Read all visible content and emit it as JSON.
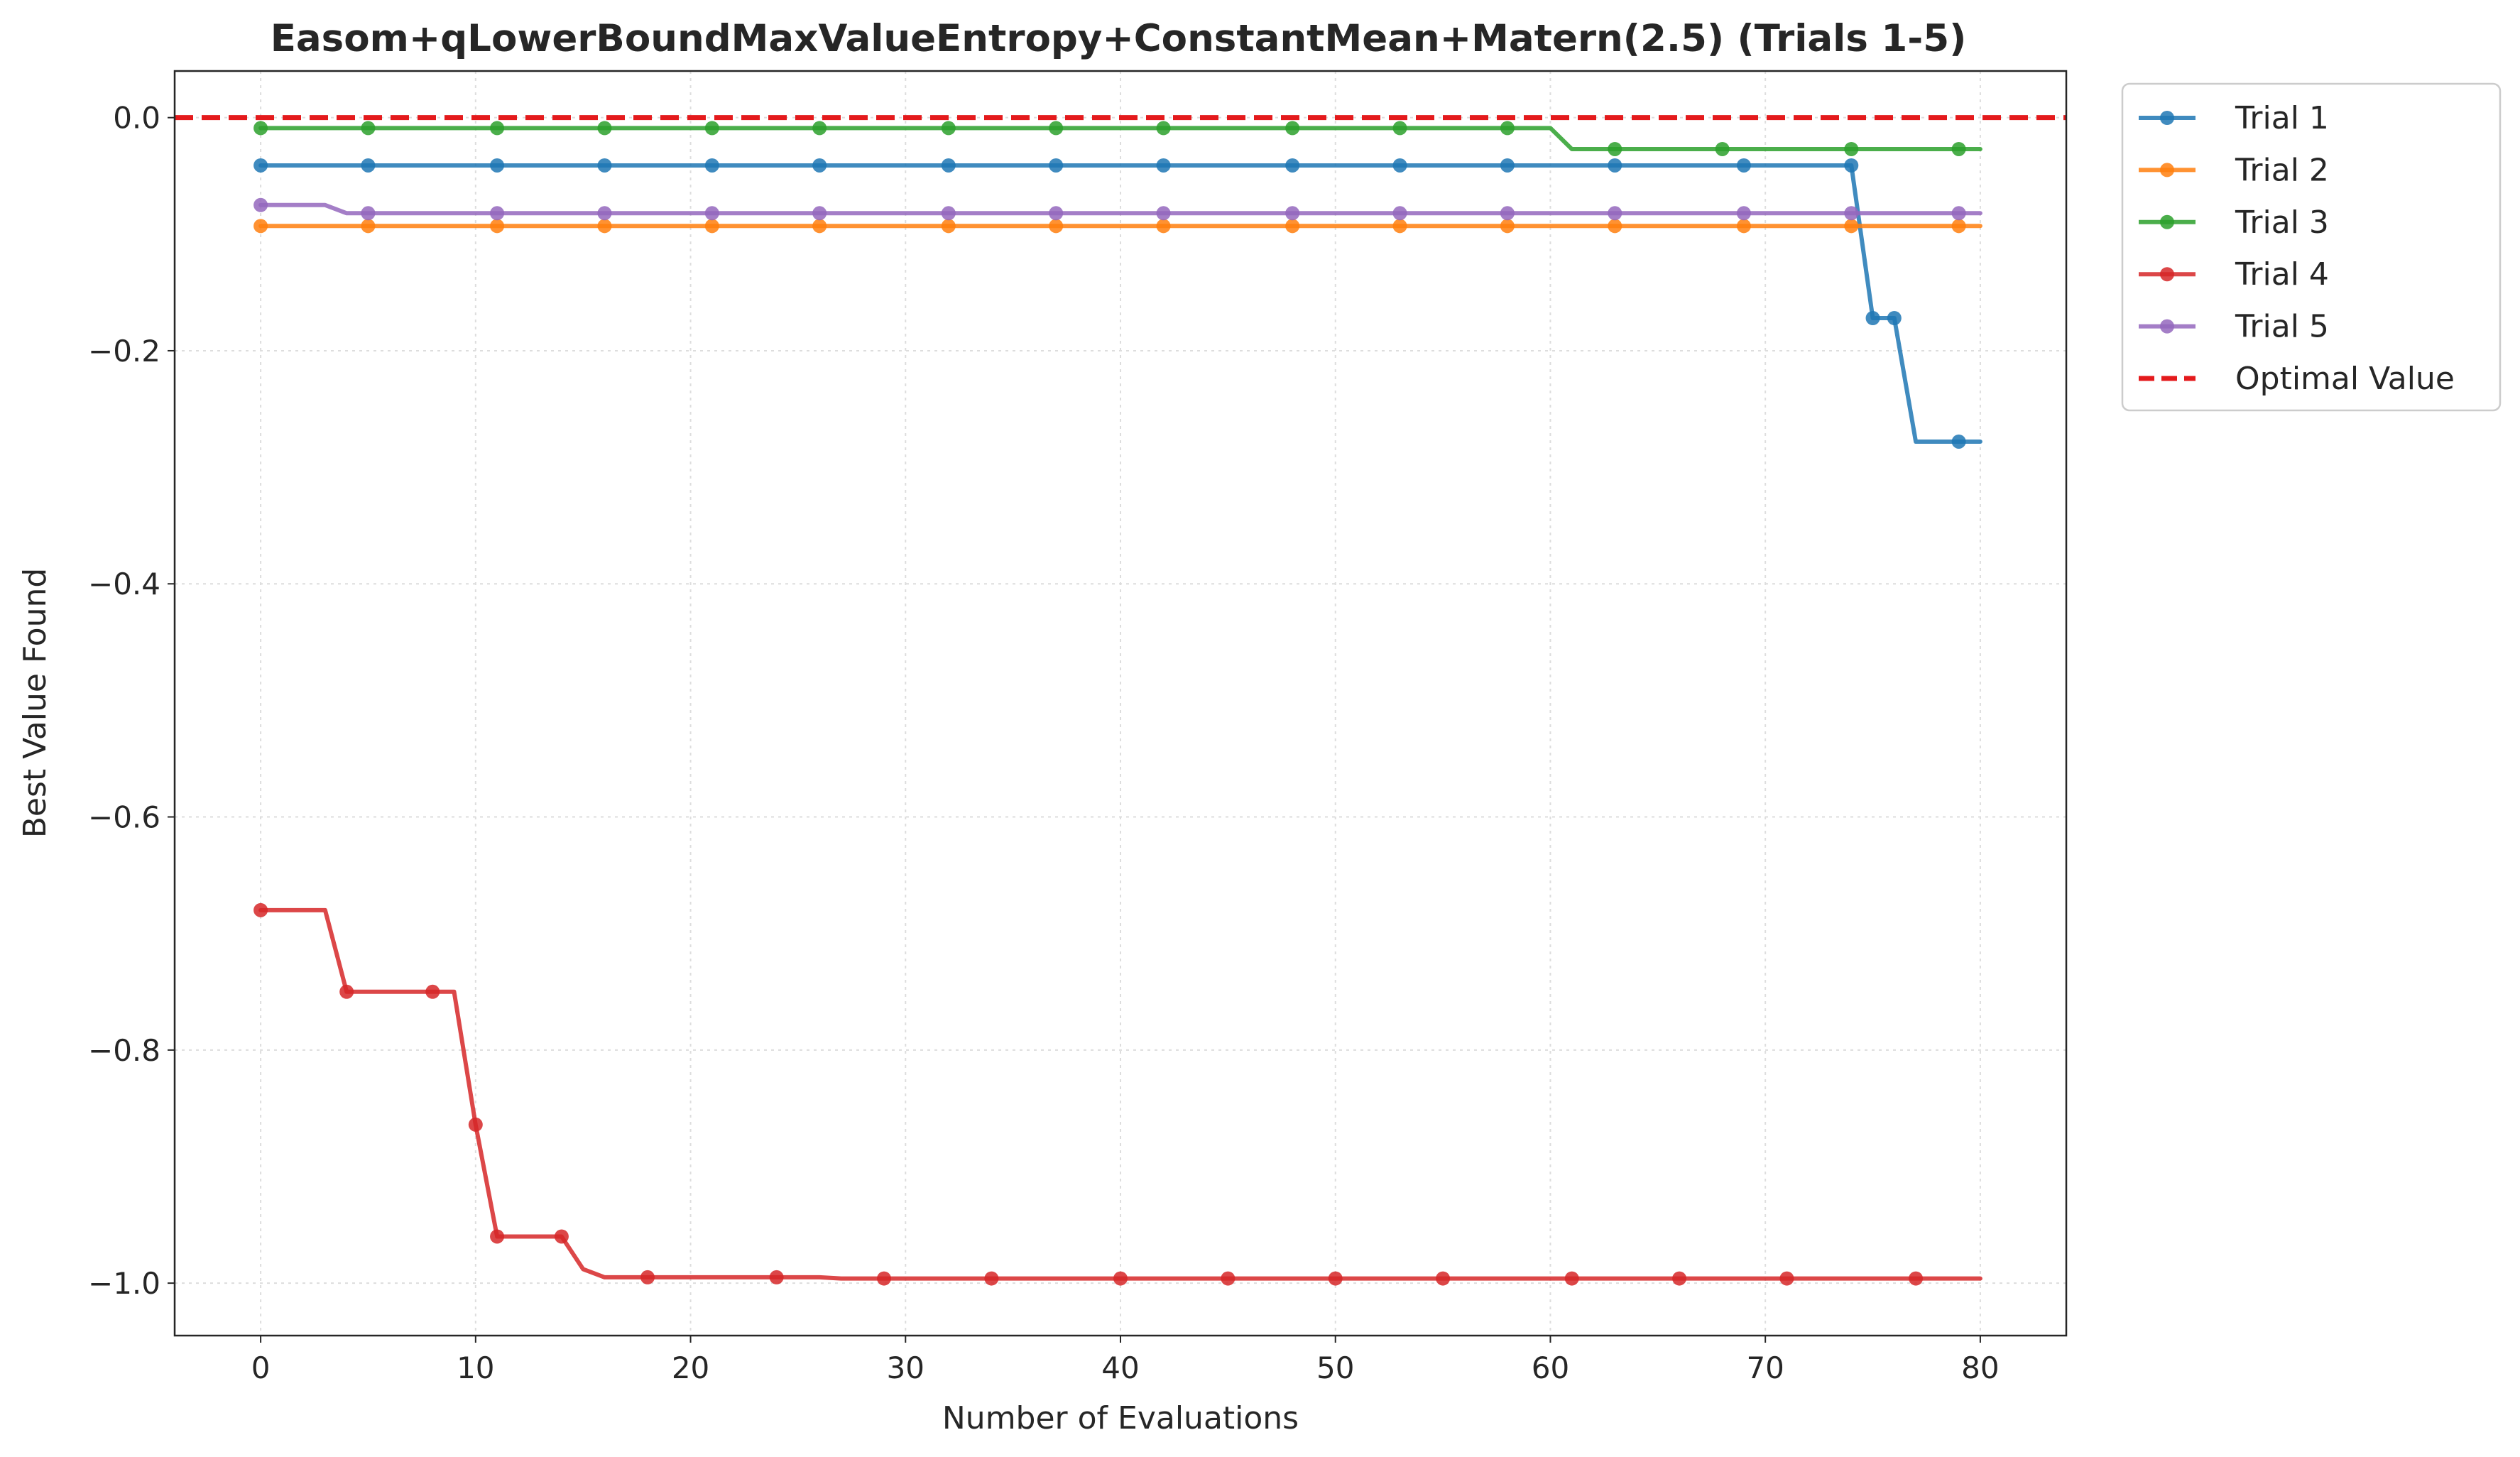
{
  "chart_data": {
    "type": "line",
    "title": "Easom+qLowerBoundMaxValueEntropy+ConstantMean+Matern(2.5) (Trials 1-5)",
    "xlabel": "Number of Evaluations",
    "ylabel": "Best Value Found",
    "xlim": [
      -4,
      84
    ],
    "ylim": [
      -1.045,
      0.04
    ],
    "xticks": [
      0,
      10,
      20,
      30,
      40,
      50,
      60,
      70,
      80
    ],
    "yticks": [
      0.0,
      -0.2,
      -0.4,
      -0.6,
      -0.8,
      -1.0
    ],
    "xtick_labels": [
      "0",
      "10",
      "20",
      "30",
      "40",
      "50",
      "60",
      "70",
      "80"
    ],
    "ytick_labels": [
      "0.0",
      "−0.2",
      "−0.4",
      "−0.6",
      "−0.8",
      "−1.0"
    ],
    "grid": true,
    "legend_position": "outside-top-right",
    "series": [
      {
        "name": "Trial 1",
        "color": "#1f77b4",
        "line_points": [
          [
            0,
            -0.041
          ],
          [
            74,
            -0.041
          ],
          [
            75,
            -0.172
          ],
          [
            76,
            -0.172
          ],
          [
            77,
            -0.278
          ],
          [
            80,
            -0.278
          ]
        ],
        "markers": [
          [
            0,
            -0.041
          ],
          [
            5,
            -0.041
          ],
          [
            11,
            -0.041
          ],
          [
            16,
            -0.041
          ],
          [
            21,
            -0.041
          ],
          [
            26,
            -0.041
          ],
          [
            32,
            -0.041
          ],
          [
            37,
            -0.041
          ],
          [
            42,
            -0.041
          ],
          [
            48,
            -0.041
          ],
          [
            53,
            -0.041
          ],
          [
            58,
            -0.041
          ],
          [
            63,
            -0.041
          ],
          [
            69,
            -0.041
          ],
          [
            74,
            -0.041
          ],
          [
            75,
            -0.172
          ],
          [
            76,
            -0.172
          ],
          [
            79,
            -0.278
          ]
        ]
      },
      {
        "name": "Trial 2",
        "color": "#ff7f0e",
        "line_points": [
          [
            0,
            -0.093
          ],
          [
            80,
            -0.093
          ]
        ],
        "markers": [
          [
            0,
            -0.093
          ],
          [
            5,
            -0.093
          ],
          [
            11,
            -0.093
          ],
          [
            16,
            -0.093
          ],
          [
            21,
            -0.093
          ],
          [
            26,
            -0.093
          ],
          [
            32,
            -0.093
          ],
          [
            37,
            -0.093
          ],
          [
            42,
            -0.093
          ],
          [
            48,
            -0.093
          ],
          [
            53,
            -0.093
          ],
          [
            58,
            -0.093
          ],
          [
            63,
            -0.093
          ],
          [
            69,
            -0.093
          ],
          [
            74,
            -0.093
          ],
          [
            79,
            -0.093
          ]
        ]
      },
      {
        "name": "Trial 3",
        "color": "#2ca02c",
        "line_points": [
          [
            0,
            -0.009
          ],
          [
            60,
            -0.009
          ],
          [
            61,
            -0.027
          ],
          [
            80,
            -0.027
          ]
        ],
        "markers": [
          [
            0,
            -0.009
          ],
          [
            5,
            -0.009
          ],
          [
            11,
            -0.009
          ],
          [
            16,
            -0.009
          ],
          [
            21,
            -0.009
          ],
          [
            26,
            -0.009
          ],
          [
            32,
            -0.009
          ],
          [
            37,
            -0.009
          ],
          [
            42,
            -0.009
          ],
          [
            48,
            -0.009
          ],
          [
            53,
            -0.009
          ],
          [
            58,
            -0.009
          ],
          [
            63,
            -0.027
          ],
          [
            68,
            -0.027
          ],
          [
            74,
            -0.027
          ],
          [
            79,
            -0.027
          ]
        ]
      },
      {
        "name": "Trial 4",
        "color": "#d62728",
        "line_points": [
          [
            0,
            -0.68
          ],
          [
            3,
            -0.68
          ],
          [
            4,
            -0.75
          ],
          [
            9,
            -0.75
          ],
          [
            10,
            -0.864
          ],
          [
            11,
            -0.96
          ],
          [
            14,
            -0.96
          ],
          [
            15,
            -0.988
          ],
          [
            16,
            -0.995
          ],
          [
            26,
            -0.995
          ],
          [
            27,
            -0.996
          ],
          [
            80,
            -0.996
          ]
        ],
        "markers": [
          [
            0,
            -0.68
          ],
          [
            4,
            -0.75
          ],
          [
            8,
            -0.75
          ],
          [
            10,
            -0.864
          ],
          [
            11,
            -0.96
          ],
          [
            14,
            -0.96
          ],
          [
            18,
            -0.995
          ],
          [
            24,
            -0.995
          ],
          [
            29,
            -0.996
          ],
          [
            34,
            -0.996
          ],
          [
            40,
            -0.996
          ],
          [
            45,
            -0.996
          ],
          [
            50,
            -0.996
          ],
          [
            55,
            -0.996
          ],
          [
            61,
            -0.996
          ],
          [
            66,
            -0.996
          ],
          [
            71,
            -0.996
          ],
          [
            77,
            -0.996
          ]
        ]
      },
      {
        "name": "Trial 5",
        "color": "#9467bd",
        "line_points": [
          [
            0,
            -0.075
          ],
          [
            3,
            -0.075
          ],
          [
            4,
            -0.082
          ],
          [
            80,
            -0.082
          ]
        ],
        "markers": [
          [
            0,
            -0.075
          ],
          [
            5,
            -0.082
          ],
          [
            11,
            -0.082
          ],
          [
            16,
            -0.082
          ],
          [
            21,
            -0.082
          ],
          [
            26,
            -0.082
          ],
          [
            32,
            -0.082
          ],
          [
            37,
            -0.082
          ],
          [
            42,
            -0.082
          ],
          [
            48,
            -0.082
          ],
          [
            53,
            -0.082
          ],
          [
            58,
            -0.082
          ],
          [
            63,
            -0.082
          ],
          [
            69,
            -0.082
          ],
          [
            74,
            -0.082
          ],
          [
            79,
            -0.082
          ]
        ]
      }
    ],
    "reference_line": {
      "name": "Optimal Value",
      "y": 0.0,
      "color": "#e41a1c",
      "style": "dashed"
    }
  }
}
